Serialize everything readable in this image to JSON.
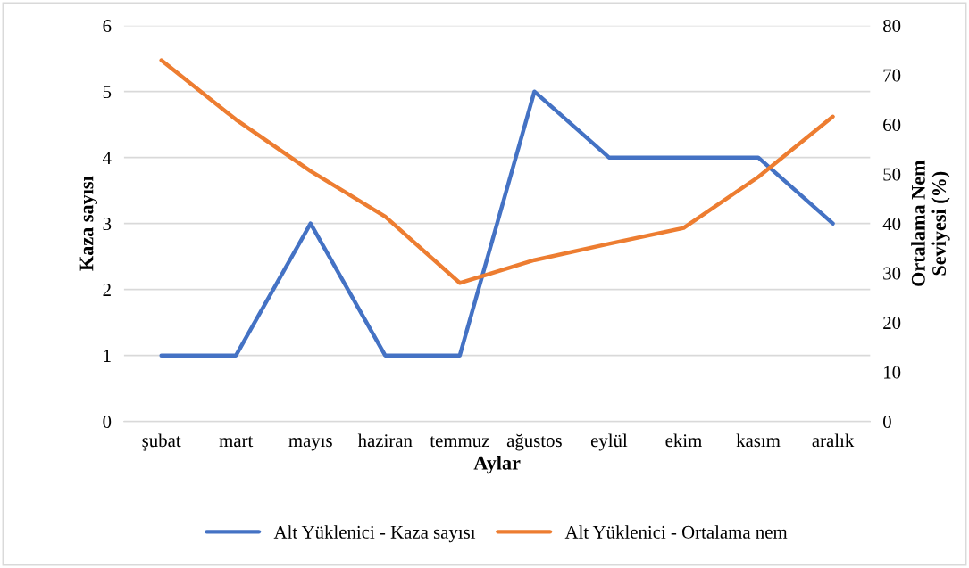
{
  "chart_data": {
    "type": "line",
    "xlabel": "Aylar",
    "ylabel": "Kaza sayısı",
    "y2label": "Ortalama Nem\nSeviyesi (%)",
    "categories": [
      "şubat",
      "mart",
      "mayıs",
      "haziran",
      "temmuz",
      "ağustos",
      "eylül",
      "ekim",
      "kasım",
      "aralık"
    ],
    "series": [
      {
        "name": "Alt Yüklenici - Kaza sayısı",
        "color": "#4472c4",
        "values": [
          1,
          1,
          3,
          1,
          1,
          5,
          4,
          4,
          4,
          3
        ]
      },
      {
        "name": "Alt Yüklenici - Ortalama nem",
        "color": "#ed7d31",
        "axis": "y2",
        "values": [
          73,
          61,
          50.6,
          41.4,
          28,
          32.6,
          35.9,
          39.1,
          49.4,
          61.6
        ]
      }
    ],
    "ylim": [
      0,
      6
    ],
    "yticks": [
      0,
      1,
      2,
      3,
      4,
      5,
      6
    ],
    "y2lim": [
      0,
      80
    ],
    "y2ticks": [
      0,
      10,
      20,
      30,
      40,
      50,
      60,
      70,
      80
    ],
    "grid": "y",
    "legend": "bottom",
    "marker": "none",
    "line_style": "solid"
  }
}
